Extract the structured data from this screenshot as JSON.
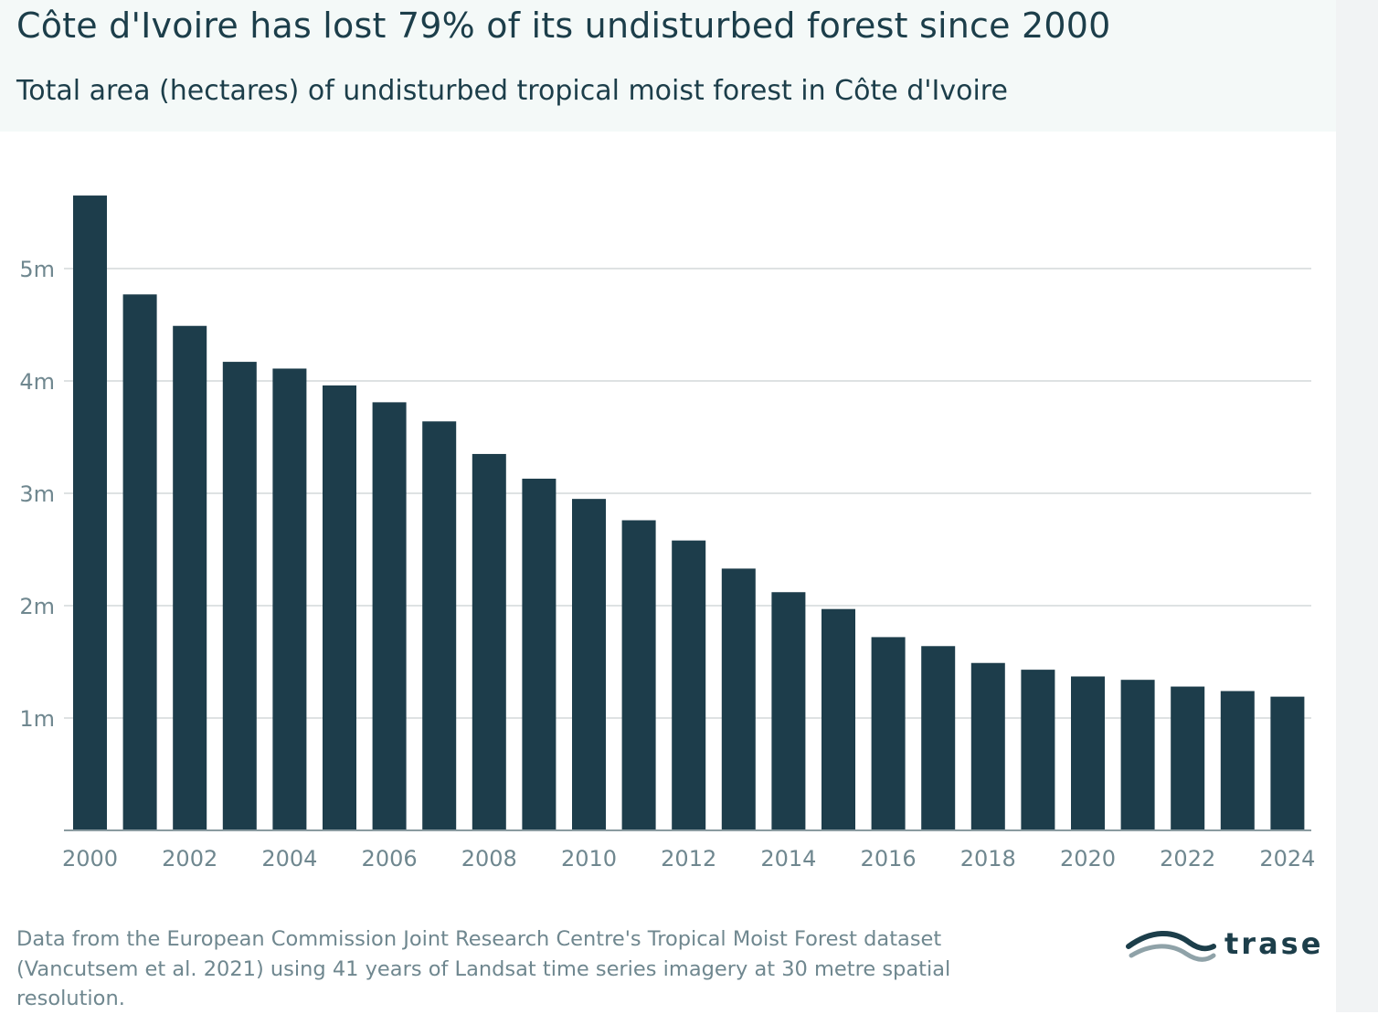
{
  "header": {
    "title": "Côte d'Ivoire has lost 79% of its undisturbed forest since 2000",
    "subtitle": "Total area (hectares) of undisturbed tropical moist forest in Côte d'Ivoire"
  },
  "colors": {
    "bar": "#1d3d4b",
    "grid": "#d3d8da",
    "tick_text": "#6f878f",
    "title": "#1c3e4a",
    "header_bg": "#f4f9f8"
  },
  "chart_data": {
    "type": "bar",
    "title": "",
    "xlabel": "",
    "ylabel": "",
    "categories": [
      "2000",
      "2001",
      "2002",
      "2003",
      "2004",
      "2005",
      "2006",
      "2007",
      "2008",
      "2009",
      "2010",
      "2011",
      "2012",
      "2013",
      "2014",
      "2015",
      "2016",
      "2017",
      "2018",
      "2019",
      "2020",
      "2021",
      "2022",
      "2023",
      "2024"
    ],
    "values": [
      5.65,
      4.77,
      4.49,
      4.17,
      4.11,
      3.96,
      3.81,
      3.64,
      3.35,
      3.13,
      2.95,
      2.76,
      2.58,
      2.33,
      2.12,
      1.97,
      1.72,
      1.64,
      1.49,
      1.43,
      1.37,
      1.34,
      1.28,
      1.24,
      1.19
    ],
    "value_unit": "million hectares",
    "ylim": [
      0,
      5.65
    ],
    "yticks": [
      1,
      2,
      3,
      4,
      5
    ],
    "ytick_labels": [
      "1m",
      "2m",
      "3m",
      "4m",
      "5m"
    ],
    "xtick_labels": [
      "2000",
      "2002",
      "2004",
      "2006",
      "2008",
      "2010",
      "2012",
      "2014",
      "2016",
      "2018",
      "2020",
      "2022",
      "2024"
    ],
    "grid": true,
    "legend": "none"
  },
  "footer": {
    "source": "Data from the European Commission Joint Research Centre's Tropical Moist Forest dataset (Vancutsem et al. 2021) using 41 years of Landsat time series imagery at 30 metre spatial resolution.",
    "logo_text": "trase"
  }
}
